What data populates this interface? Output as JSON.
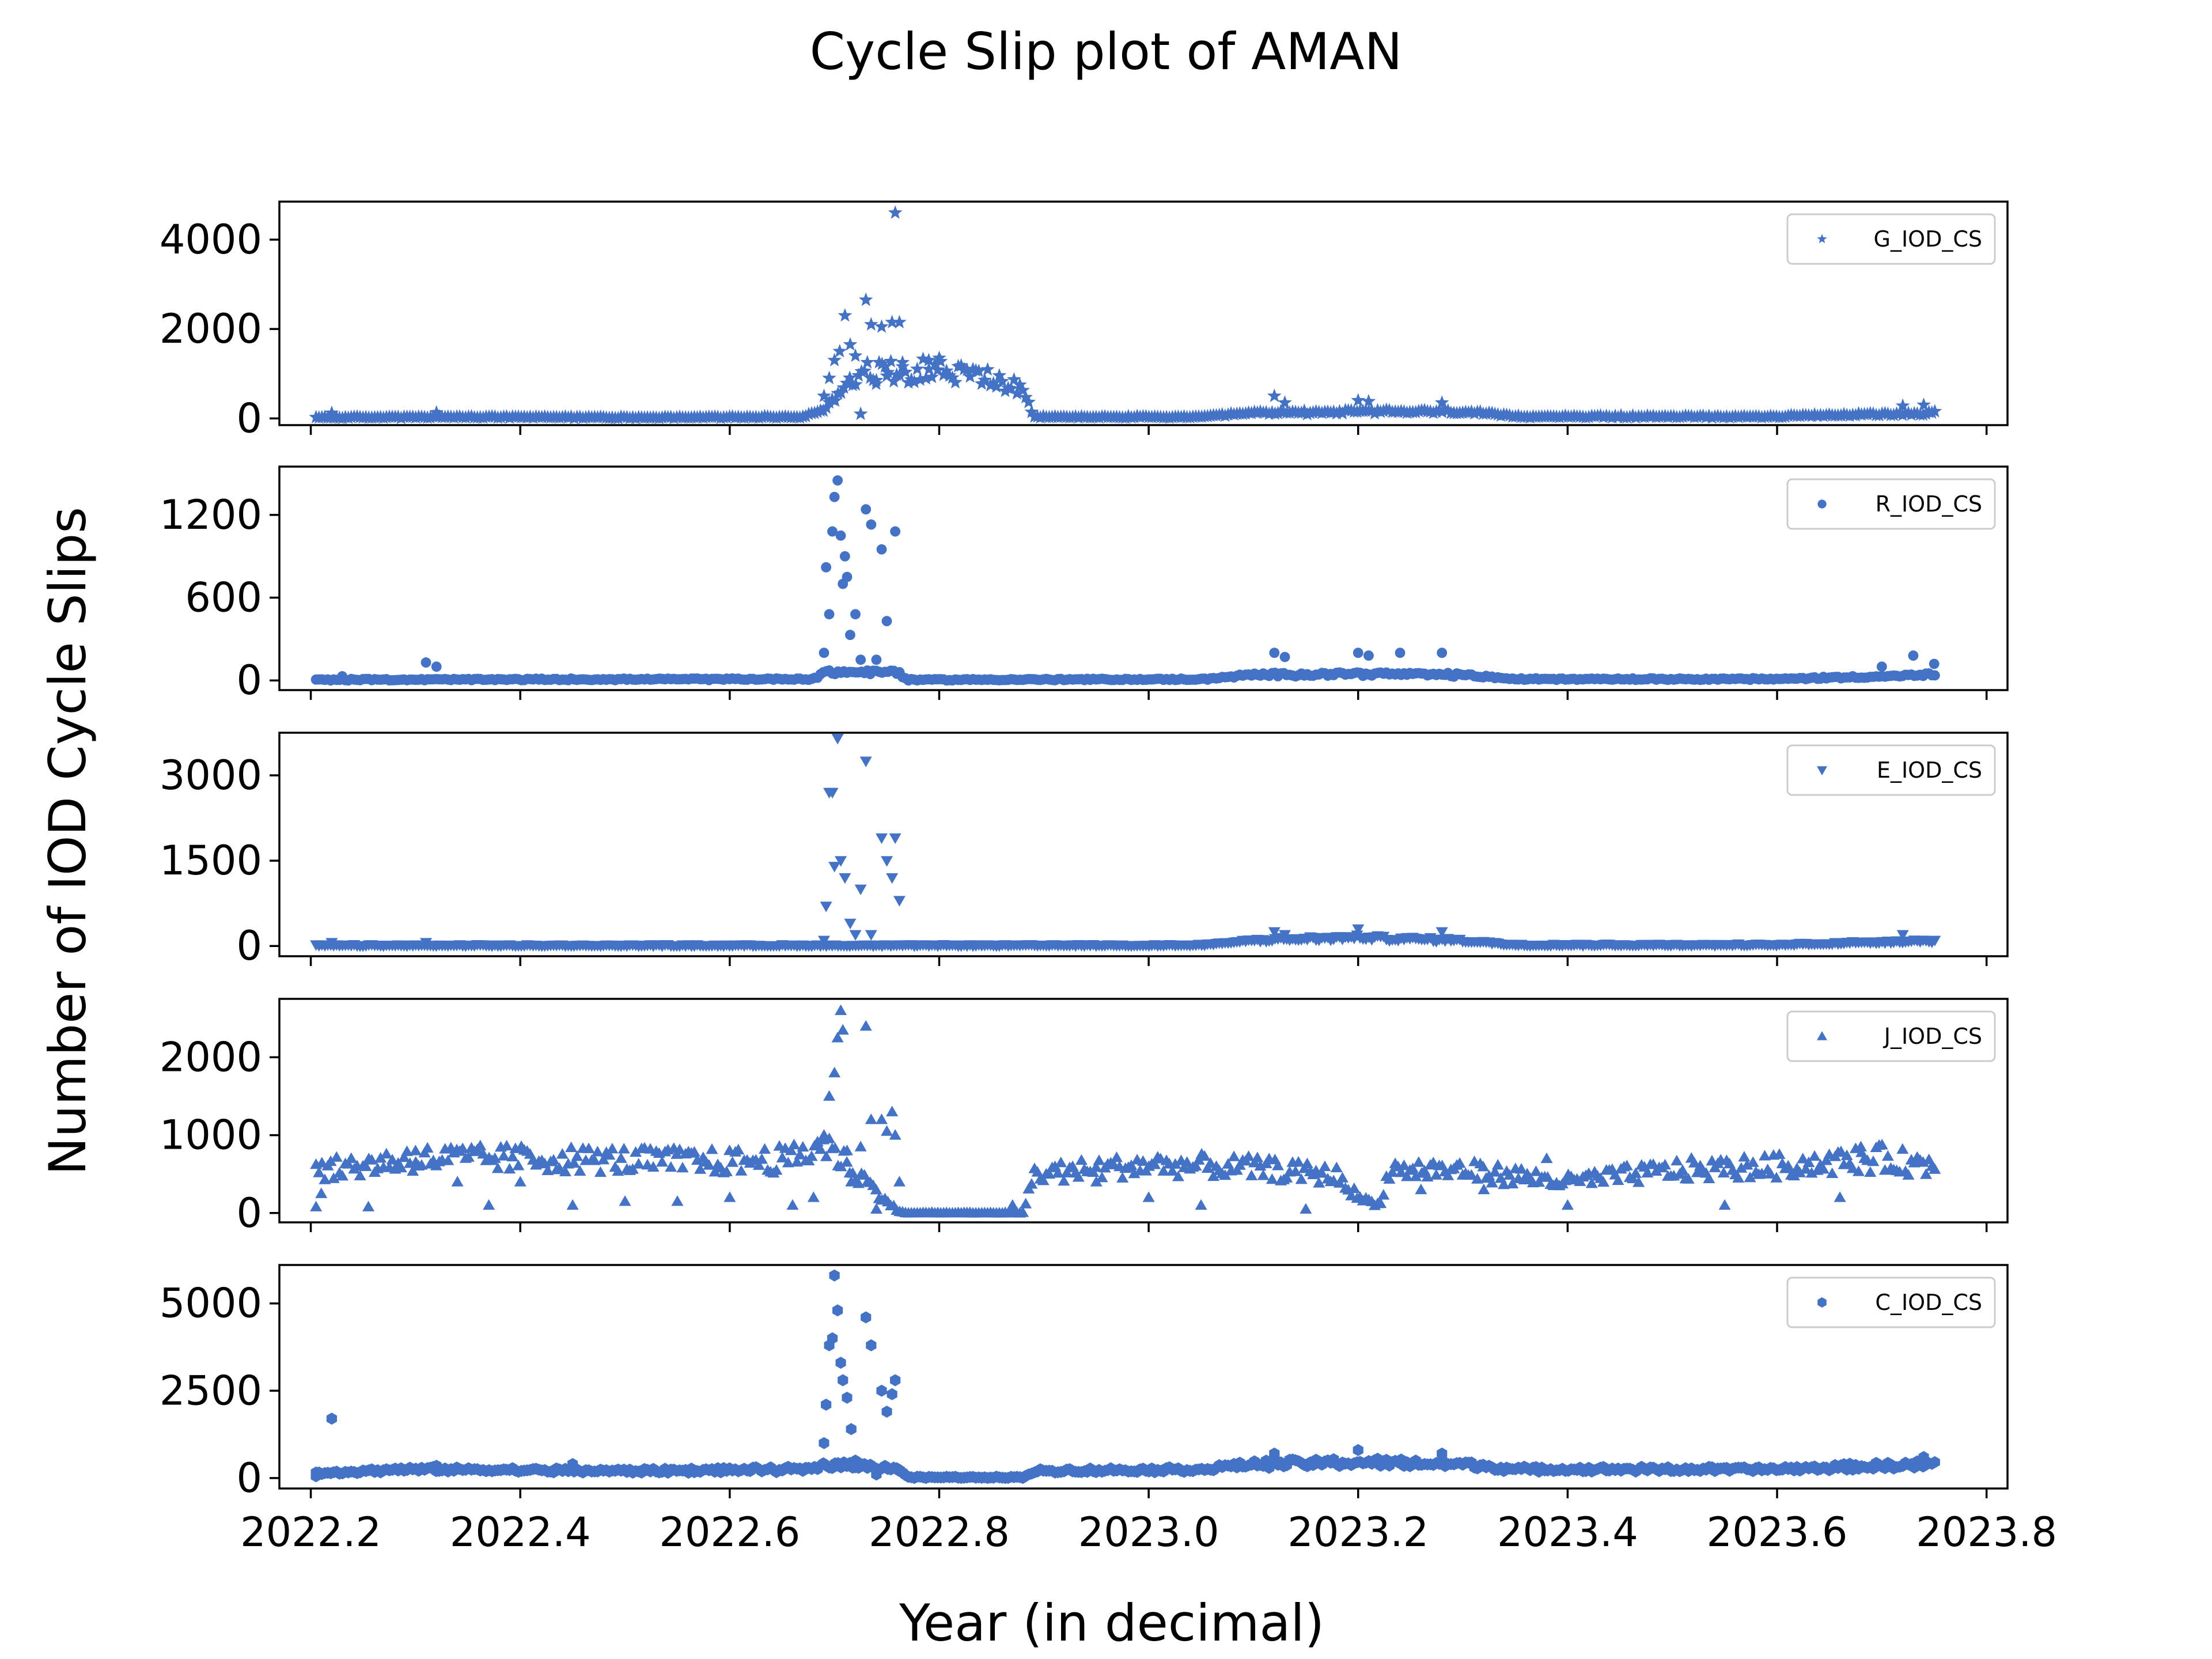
{
  "figure": {
    "title": "Cycle Slip plot of AMAN",
    "xlabel": "Year (in decimal)",
    "ylabel": "Number of IOD Cycle Slips"
  },
  "colors": {
    "marker": "#4472c4",
    "axes": "#000000",
    "background": "#ffffff",
    "legend_border": "#cccccc"
  },
  "chart_data": [
    {
      "type": "scatter",
      "name": "G_IOD_CS",
      "marker": "star",
      "xlim": [
        2022.17,
        2023.82
      ],
      "ylim": [
        -150,
        4850
      ],
      "yticks": [
        0,
        2000,
        4000
      ],
      "xticks": [
        2022.2,
        2022.4,
        2022.6,
        2022.8,
        2023.0,
        2023.2,
        2023.4,
        2023.6,
        2023.8
      ],
      "legend": "top-right",
      "baseline": [
        [
          2022.21,
          20
        ],
        [
          2022.35,
          30
        ],
        [
          2022.5,
          20
        ],
        [
          2022.67,
          30
        ],
        [
          2022.69,
          200
        ],
        [
          2022.72,
          1000
        ],
        [
          2022.79,
          1100
        ],
        [
          2022.85,
          900
        ],
        [
          2022.88,
          600
        ],
        [
          2022.89,
          30
        ],
        [
          2023.05,
          30
        ],
        [
          2023.1,
          120
        ],
        [
          2023.2,
          150
        ],
        [
          2023.3,
          150
        ],
        [
          2023.35,
          40
        ],
        [
          2023.6,
          40
        ],
        [
          2023.75,
          120
        ]
      ],
      "peaks": [
        [
          2022.22,
          120
        ],
        [
          2022.32,
          130
        ],
        [
          2022.69,
          500
        ],
        [
          2022.695,
          900
        ],
        [
          2022.7,
          1300
        ],
        [
          2022.705,
          1500
        ],
        [
          2022.71,
          2300
        ],
        [
          2022.715,
          1650
        ],
        [
          2022.72,
          1400
        ],
        [
          2022.725,
          100
        ],
        [
          2022.73,
          2650
        ],
        [
          2022.735,
          2100
        ],
        [
          2022.74,
          850
        ],
        [
          2022.745,
          2050
        ],
        [
          2022.75,
          950
        ],
        [
          2022.755,
          2150
        ],
        [
          2022.758,
          4600
        ],
        [
          2022.762,
          2150
        ],
        [
          2022.765,
          1250
        ],
        [
          2022.79,
          1300
        ],
        [
          2022.8,
          1350
        ],
        [
          2023.12,
          500
        ],
        [
          2023.13,
          350
        ],
        [
          2023.2,
          400
        ],
        [
          2023.21,
          380
        ],
        [
          2023.28,
          350
        ],
        [
          2023.72,
          280
        ],
        [
          2023.74,
          300
        ]
      ]
    },
    {
      "type": "scatter",
      "name": "R_IOD_CS",
      "marker": "circle",
      "xlim": [
        2022.17,
        2023.82
      ],
      "ylim": [
        -70,
        1550
      ],
      "yticks": [
        0,
        600,
        1200
      ],
      "xticks": [
        2022.2,
        2022.4,
        2022.6,
        2022.8,
        2023.0,
        2023.2,
        2023.4,
        2023.6,
        2023.8
      ],
      "legend": "top-right",
      "baseline": [
        [
          2022.21,
          5
        ],
        [
          2022.68,
          10
        ],
        [
          2022.69,
          60
        ],
        [
          2022.76,
          60
        ],
        [
          2022.77,
          5
        ],
        [
          2023.05,
          8
        ],
        [
          2023.1,
          40
        ],
        [
          2023.2,
          50
        ],
        [
          2023.3,
          40
        ],
        [
          2023.35,
          10
        ],
        [
          2023.6,
          10
        ],
        [
          2023.75,
          40
        ]
      ],
      "peaks": [
        [
          2022.23,
          30
        ],
        [
          2022.31,
          130
        ],
        [
          2022.32,
          100
        ],
        [
          2022.69,
          200
        ],
        [
          2022.692,
          820
        ],
        [
          2022.695,
          480
        ],
        [
          2022.698,
          1080
        ],
        [
          2022.7,
          1330
        ],
        [
          2022.703,
          1450
        ],
        [
          2022.706,
          1050
        ],
        [
          2022.708,
          700
        ],
        [
          2022.71,
          900
        ],
        [
          2022.712,
          750
        ],
        [
          2022.715,
          330
        ],
        [
          2022.72,
          480
        ],
        [
          2022.725,
          150
        ],
        [
          2022.73,
          1240
        ],
        [
          2022.735,
          1130
        ],
        [
          2022.74,
          150
        ],
        [
          2022.745,
          950
        ],
        [
          2022.75,
          430
        ],
        [
          2022.758,
          1080
        ],
        [
          2022.762,
          60
        ],
        [
          2023.12,
          200
        ],
        [
          2023.13,
          170
        ],
        [
          2023.2,
          200
        ],
        [
          2023.21,
          180
        ],
        [
          2023.24,
          200
        ],
        [
          2023.28,
          200
        ],
        [
          2023.7,
          100
        ],
        [
          2023.73,
          180
        ],
        [
          2023.75,
          120
        ]
      ]
    },
    {
      "type": "scatter",
      "name": "E_IOD_CS",
      "marker": "triangle-down",
      "xlim": [
        2022.17,
        2023.82
      ],
      "ylim": [
        -180,
        3750
      ],
      "yticks": [
        0,
        1500,
        3000
      ],
      "xticks": [
        2022.2,
        2022.4,
        2022.6,
        2022.8,
        2023.0,
        2023.2,
        2023.4,
        2023.6,
        2023.8
      ],
      "legend": "top-right",
      "baseline": [
        [
          2022.21,
          10
        ],
        [
          2022.68,
          10
        ],
        [
          2022.77,
          10
        ],
        [
          2023.05,
          15
        ],
        [
          2023.1,
          100
        ],
        [
          2023.2,
          150
        ],
        [
          2023.3,
          100
        ],
        [
          2023.35,
          20
        ],
        [
          2023.6,
          20
        ],
        [
          2023.75,
          100
        ]
      ],
      "peaks": [
        [
          2022.22,
          60
        ],
        [
          2022.31,
          60
        ],
        [
          2022.69,
          100
        ],
        [
          2022.692,
          700
        ],
        [
          2022.695,
          2700
        ],
        [
          2022.698,
          2700
        ],
        [
          2022.7,
          1400
        ],
        [
          2022.703,
          3650
        ],
        [
          2022.706,
          1500
        ],
        [
          2022.71,
          1200
        ],
        [
          2022.715,
          400
        ],
        [
          2022.72,
          200
        ],
        [
          2022.725,
          1000
        ],
        [
          2022.73,
          3250
        ],
        [
          2022.735,
          200
        ],
        [
          2022.745,
          1900
        ],
        [
          2022.75,
          1500
        ],
        [
          2022.755,
          1200
        ],
        [
          2022.758,
          1900
        ],
        [
          2022.762,
          800
        ],
        [
          2023.12,
          250
        ],
        [
          2023.13,
          200
        ],
        [
          2023.2,
          300
        ],
        [
          2023.28,
          250
        ],
        [
          2023.72,
          200
        ]
      ]
    },
    {
      "type": "scatter",
      "name": "J_IOD_CS",
      "marker": "triangle-up",
      "xlim": [
        2022.17,
        2023.82
      ],
      "ylim": [
        -120,
        2750
      ],
      "yticks": [
        0,
        1000,
        2000
      ],
      "xticks": [
        2022.2,
        2022.4,
        2022.6,
        2022.8,
        2023.0,
        2023.2,
        2023.4,
        2023.6,
        2023.8
      ],
      "legend": "top-right",
      "baseline": [
        [
          2022.21,
          550
        ],
        [
          2022.3,
          700
        ],
        [
          2022.4,
          700
        ],
        [
          2022.5,
          680
        ],
        [
          2022.6,
          660
        ],
        [
          2022.66,
          700
        ],
        [
          2022.69,
          900
        ],
        [
          2022.76,
          30
        ],
        [
          2022.77,
          0
        ],
        [
          2022.88,
          0
        ],
        [
          2022.89,
          500
        ],
        [
          2023.0,
          620
        ],
        [
          2023.1,
          580
        ],
        [
          2023.18,
          480
        ],
        [
          2023.2,
          200
        ],
        [
          2023.22,
          100
        ],
        [
          2023.23,
          550
        ],
        [
          2023.3,
          550
        ],
        [
          2023.4,
          400
        ],
        [
          2023.5,
          550
        ],
        [
          2023.6,
          600
        ],
        [
          2023.7,
          700
        ],
        [
          2023.75,
          600
        ]
      ],
      "peaks": [
        [
          2022.205,
          80
        ],
        [
          2022.21,
          250
        ],
        [
          2022.255,
          80
        ],
        [
          2022.3,
          800
        ],
        [
          2022.34,
          400
        ],
        [
          2022.37,
          100
        ],
        [
          2022.4,
          400
        ],
        [
          2022.45,
          100
        ],
        [
          2022.5,
          150
        ],
        [
          2022.55,
          150
        ],
        [
          2022.6,
          200
        ],
        [
          2022.66,
          100
        ],
        [
          2022.68,
          200
        ],
        [
          2022.69,
          1000
        ],
        [
          2022.695,
          1500
        ],
        [
          2022.7,
          1800
        ],
        [
          2022.703,
          2250
        ],
        [
          2022.706,
          2600
        ],
        [
          2022.708,
          2350
        ],
        [
          2022.712,
          800
        ],
        [
          2022.716,
          400
        ],
        [
          2022.725,
          850
        ],
        [
          2022.73,
          2400
        ],
        [
          2022.735,
          1200
        ],
        [
          2022.74,
          50
        ],
        [
          2022.745,
          1200
        ],
        [
          2022.75,
          1050
        ],
        [
          2022.755,
          1300
        ],
        [
          2022.758,
          1000
        ],
        [
          2022.762,
          400
        ],
        [
          2022.87,
          100
        ],
        [
          2022.95,
          400
        ],
        [
          2023.0,
          200
        ],
        [
          2023.05,
          100
        ],
        [
          2023.15,
          50
        ],
        [
          2023.26,
          300
        ],
        [
          2023.32,
          300
        ],
        [
          2023.38,
          700
        ],
        [
          2023.4,
          100
        ],
        [
          2023.55,
          100
        ],
        [
          2023.66,
          200
        ],
        [
          2023.68,
          850
        ]
      ]
    },
    {
      "type": "scatter",
      "name": "C_IOD_CS",
      "marker": "hexagon",
      "xlim": [
        2022.17,
        2023.82
      ],
      "ylim": [
        -300,
        6100
      ],
      "yticks": [
        0,
        2500,
        5000
      ],
      "xticks": [
        2022.2,
        2022.4,
        2022.6,
        2022.8,
        2023.0,
        2023.2,
        2023.4,
        2023.6,
        2023.8
      ],
      "xticklabels": [
        "2022.2",
        "2022.4",
        "2022.6",
        "2022.8",
        "2023.0",
        "2023.2",
        "2023.4",
        "2023.6",
        "2023.8"
      ],
      "legend": "top-right",
      "baseline": [
        [
          2022.21,
          150
        ],
        [
          2022.3,
          250
        ],
        [
          2022.5,
          200
        ],
        [
          2022.68,
          250
        ],
        [
          2022.69,
          400
        ],
        [
          2022.76,
          300
        ],
        [
          2022.77,
          20
        ],
        [
          2022.88,
          20
        ],
        [
          2022.89,
          200
        ],
        [
          2023.05,
          250
        ],
        [
          2023.1,
          400
        ],
        [
          2023.2,
          450
        ],
        [
          2023.3,
          400
        ],
        [
          2023.35,
          250
        ],
        [
          2023.6,
          250
        ],
        [
          2023.75,
          400
        ]
      ],
      "peaks": [
        [
          2022.205,
          50
        ],
        [
          2022.22,
          1700
        ],
        [
          2022.32,
          350
        ],
        [
          2022.45,
          400
        ],
        [
          2022.68,
          300
        ],
        [
          2022.69,
          1000
        ],
        [
          2022.692,
          2100
        ],
        [
          2022.695,
          3800
        ],
        [
          2022.698,
          4000
        ],
        [
          2022.7,
          5800
        ],
        [
          2022.703,
          4800
        ],
        [
          2022.706,
          3300
        ],
        [
          2022.708,
          2800
        ],
        [
          2022.712,
          2300
        ],
        [
          2022.716,
          1400
        ],
        [
          2022.72,
          500
        ],
        [
          2022.725,
          400
        ],
        [
          2022.73,
          4600
        ],
        [
          2022.735,
          3800
        ],
        [
          2022.74,
          100
        ],
        [
          2022.745,
          2500
        ],
        [
          2022.75,
          1900
        ],
        [
          2022.755,
          2400
        ],
        [
          2022.758,
          2800
        ],
        [
          2022.762,
          200
        ],
        [
          2023.12,
          700
        ],
        [
          2023.2,
          800
        ],
        [
          2023.28,
          700
        ],
        [
          2023.74,
          600
        ]
      ]
    }
  ]
}
